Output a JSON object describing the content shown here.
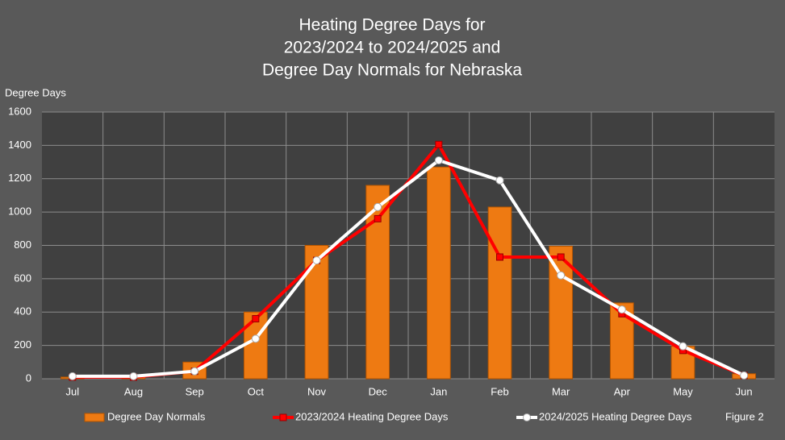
{
  "chart_data": {
    "type": "bar",
    "title": [
      "Heating Degree Days for",
      "2023/2024 to 2024/2025 and",
      "Degree Day Normals for Nebraska"
    ],
    "y_label": "Degree Days",
    "annotation": "Figure 2",
    "categories": [
      "Jul",
      "Aug",
      "Sep",
      "Oct",
      "Nov",
      "Dec",
      "Jan",
      "Feb",
      "Mar",
      "Apr",
      "May",
      "Jun"
    ],
    "series": [
      {
        "name": "Degree Day Normals",
        "type": "bar",
        "color": "#ee7a12",
        "values": [
          10,
          15,
          100,
          400,
          800,
          1160,
          1270,
          1030,
          795,
          455,
          195,
          30
        ]
      },
      {
        "name": "2023/2024 Heating Degree Days",
        "type": "line",
        "marker": "square",
        "color": "#ff0000",
        "values": [
          10,
          10,
          45,
          360,
          710,
          960,
          1405,
          730,
          730,
          390,
          170,
          20
        ]
      },
      {
        "name": "2024/2025 Heating Degree Days",
        "type": "line",
        "marker": "circle",
        "color": "#ffffff",
        "values": [
          15,
          15,
          45,
          240,
          710,
          1030,
          1310,
          1190,
          620,
          415,
          195,
          20
        ]
      }
    ],
    "ylim": [
      0,
      1600
    ],
    "yticks": [
      0,
      200,
      400,
      600,
      800,
      1000,
      1200,
      1400,
      1600
    ],
    "grid": true
  }
}
